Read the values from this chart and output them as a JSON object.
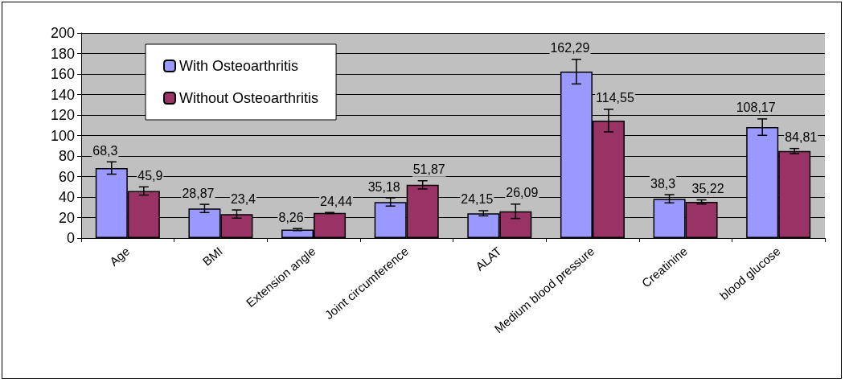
{
  "chart_data": {
    "type": "bar",
    "categories": [
      "Age",
      "BMI",
      "Extension angle",
      "Joint circumference",
      "ALAT",
      "Medium blood pressure",
      "Creatinine",
      "blood glucose"
    ],
    "series": [
      {
        "name": "With Osteoarthritis",
        "color": "#9999ff",
        "values": [
          68.3,
          28.87,
          8.26,
          35.18,
          24.15,
          162.29,
          38.3,
          108.17
        ],
        "errors": [
          6,
          4,
          1,
          4,
          2.5,
          12,
          4,
          8
        ],
        "value_labels": [
          "68,3",
          "28,87",
          "8,26",
          "35,18",
          "24,15",
          "162,29",
          "38,3",
          "108,17"
        ]
      },
      {
        "name": "Without Osteoarthritis",
        "color": "#993366",
        "values": [
          45.9,
          23.4,
          24.44,
          51.87,
          26.09,
          114.55,
          35.22,
          84.81
        ],
        "errors": [
          4,
          4,
          0.5,
          4,
          7,
          11,
          2,
          2.5
        ],
        "value_labels": [
          "45,9",
          "23,4",
          "24,44",
          "51,87",
          "26,09",
          "114,55",
          "35,22",
          "84,81"
        ]
      }
    ],
    "ylim": [
      0,
      200
    ],
    "yticks": [
      0,
      20,
      40,
      60,
      80,
      100,
      120,
      140,
      160,
      180,
      200
    ],
    "grid": "y",
    "legend": "top left"
  }
}
